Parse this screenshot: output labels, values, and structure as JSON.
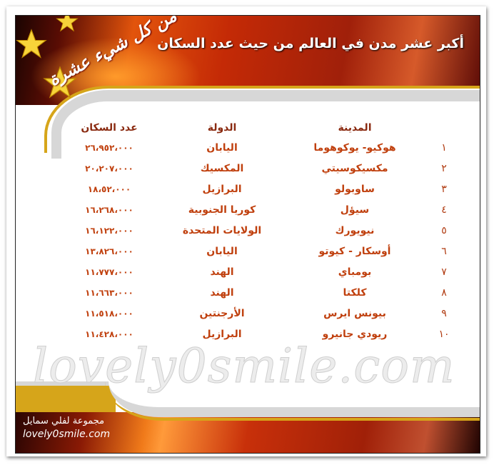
{
  "title": "أكبر عشر مدن في العالم من حيث عدد السكان",
  "logo_text": "من كل شيء عشرة",
  "watermark": "lovely0smile.com",
  "colors": {
    "text": "#c0400e",
    "header_text": "#8a2a10",
    "banner": "#c42a06",
    "gold": "#d6a51a"
  },
  "table": {
    "headers": {
      "city": "المدينة",
      "country": "الدولة",
      "population": "عدد السكان"
    },
    "rows": [
      {
        "rank": "١",
        "city": "هوكيو- يوكوهوما",
        "country": "اليابان",
        "population": "٢٦،٩٥٢،٠٠٠"
      },
      {
        "rank": "٢",
        "city": "مكسيكوسيتي",
        "country": "المكسيك",
        "population": "٢٠،٢٠٧،٠٠٠"
      },
      {
        "rank": "٣",
        "city": "ساوبولو",
        "country": "البرازيل",
        "population": "١٨،٥٢،٠٠٠"
      },
      {
        "rank": "٤",
        "city": "سيؤل",
        "country": "كوريا الجنوبية",
        "population": "١٦،٢٦٨،٠٠٠"
      },
      {
        "rank": "٥",
        "city": "نيويورك",
        "country": "الولايات المتحدة",
        "population": "١٦،١٢٢،٠٠٠"
      },
      {
        "rank": "٦",
        "city": "أوسكار - كيوتو",
        "country": "اليابان",
        "population": "١٣،٨٢٦،٠٠٠"
      },
      {
        "rank": "٧",
        "city": "بومباي",
        "country": "الهند",
        "population": "١١،٧٧٧،٠٠٠"
      },
      {
        "rank": "٨",
        "city": "كلكتا",
        "country": "الهند",
        "population": "١١،٦٦٣،٠٠٠"
      },
      {
        "rank": "٩",
        "city": "بيونس ايرس",
        "country": "الأرجنتين",
        "population": "١١،٥١٨،٠٠٠"
      },
      {
        "rank": "١٠",
        "city": "ريودي جانيرو",
        "country": "البرازيل",
        "population": "١١،٤٢٨،٠٠٠"
      }
    ]
  },
  "footer": {
    "group": "مجموعة لفلي سمايل",
    "site": "lovely0smile.com"
  }
}
